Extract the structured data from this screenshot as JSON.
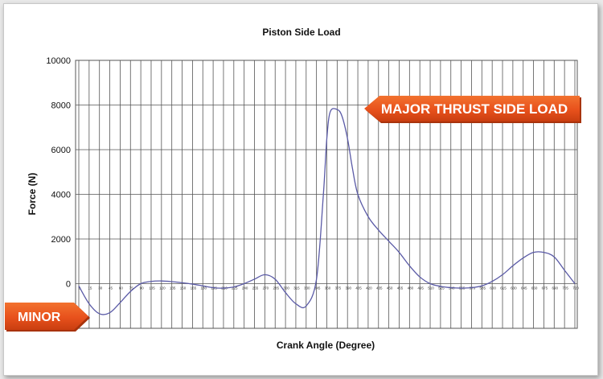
{
  "chart_data": {
    "type": "line",
    "title": "Piston Side Load",
    "xlabel": "Crank Angle (Degree)",
    "ylabel": "Force (N)",
    "xlim": [
      0,
      720
    ],
    "ylim": [
      -2000,
      10000
    ],
    "yticks": [
      0,
      2000,
      4000,
      6000,
      8000,
      10000
    ],
    "xticks": [
      0,
      15,
      30,
      45,
      60,
      75,
      90,
      105,
      120,
      135,
      150,
      165,
      180,
      195,
      210,
      225,
      240,
      255,
      270,
      285,
      300,
      315,
      330,
      345,
      360,
      375,
      390,
      405,
      420,
      435,
      450,
      465,
      480,
      495,
      510,
      525,
      540,
      555,
      570,
      585,
      600,
      615,
      630,
      645,
      660,
      675,
      690,
      705,
      720
    ],
    "grid": true,
    "legend": "none",
    "series": [
      {
        "color": "#5a5aa6",
        "x": [
          0,
          15,
          30,
          45,
          60,
          75,
          90,
          105,
          120,
          135,
          150,
          165,
          180,
          195,
          210,
          225,
          240,
          255,
          270,
          285,
          300,
          315,
          330,
          345,
          355,
          360,
          365,
          375,
          382,
          390,
          397,
          405,
          420,
          435,
          450,
          465,
          480,
          495,
          510,
          525,
          540,
          555,
          570,
          585,
          600,
          615,
          630,
          645,
          660,
          675,
          690,
          705,
          720
        ],
        "y": [
          -100,
          -900,
          -1350,
          -1300,
          -850,
          -350,
          0,
          100,
          120,
          90,
          40,
          -20,
          -100,
          -180,
          -200,
          -150,
          0,
          200,
          400,
          200,
          -400,
          -900,
          -1000,
          200,
          4000,
          6500,
          7700,
          7800,
          7500,
          6500,
          5200,
          4000,
          3000,
          2400,
          1900,
          1400,
          800,
          300,
          0,
          -120,
          -180,
          -200,
          -180,
          -100,
          100,
          400,
          800,
          1150,
          1400,
          1400,
          1200,
          600,
          0
        ]
      }
    ],
    "annotations": [
      "MAJOR THRUST SIDE LOAD",
      "MINOR"
    ]
  },
  "colors": {
    "callout": "#e8511c",
    "callout_shadow": "#a8330c",
    "line": "#5a5aa6",
    "grid": "#555555"
  }
}
